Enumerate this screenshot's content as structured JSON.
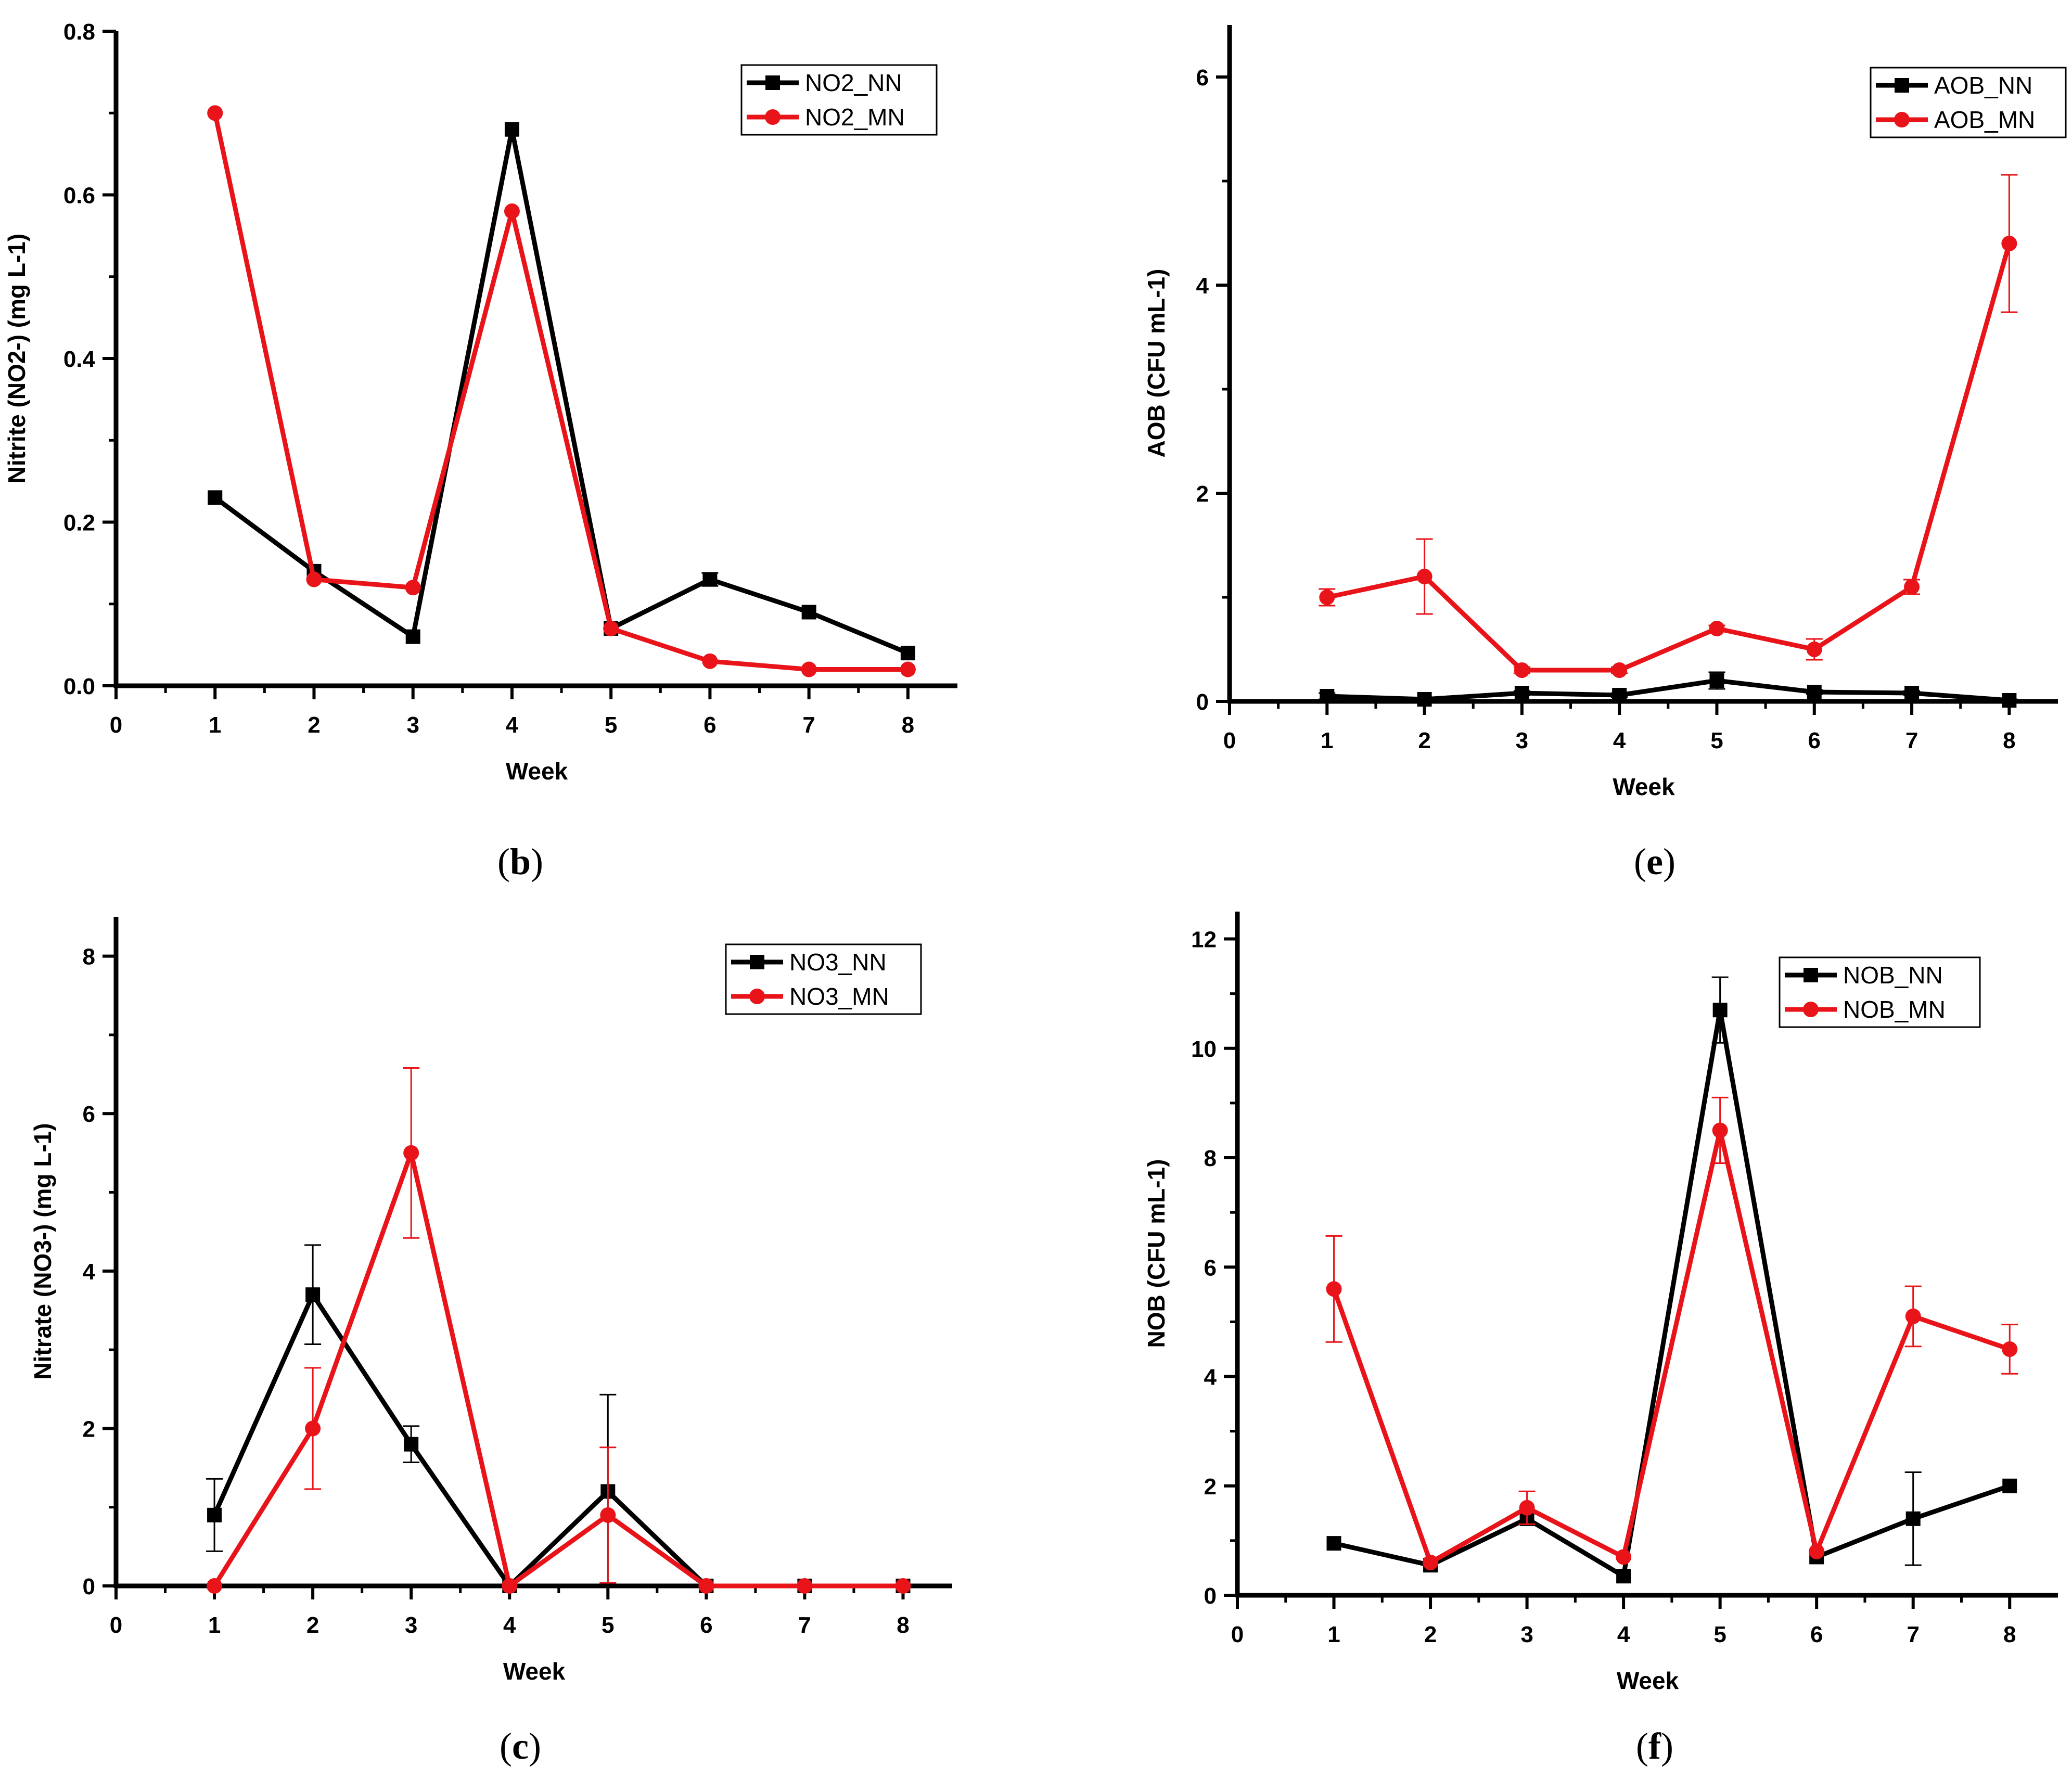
{
  "colors": {
    "nn": "#000000",
    "mn": "#e8141a"
  },
  "chart_data": [
    {
      "id": "b",
      "type": "line",
      "caption": "b",
      "xlabel": "Week",
      "ylabel": "Nitrite (NO2-) (mg L-1)",
      "xlim": [
        0,
        8.5
      ],
      "ylim": [
        0,
        0.8
      ],
      "xticks": [
        0,
        1,
        2,
        3,
        4,
        5,
        6,
        7,
        8
      ],
      "yticks": [
        0,
        0.2,
        0.4,
        0.6,
        0.8
      ],
      "ytick_labels": [
        "0.0",
        "0.2",
        "0.4",
        "0.6",
        "0.8"
      ],
      "series": [
        {
          "name": "NO2_NN",
          "color": "#000000",
          "marker": "square",
          "x": [
            1,
            2,
            3,
            4,
            5,
            6,
            7,
            8
          ],
          "y": [
            0.23,
            0.14,
            0.06,
            0.68,
            0.07,
            0.13,
            0.09,
            0.04
          ],
          "err": [
            0,
            0,
            0,
            0,
            0,
            0.008,
            0,
            0
          ]
        },
        {
          "name": "NO2_MN",
          "color": "#e8141a",
          "marker": "circle",
          "x": [
            1,
            2,
            3,
            4,
            5,
            6,
            7,
            8
          ],
          "y": [
            0.7,
            0.13,
            0.12,
            0.58,
            0.07,
            0.03,
            0.02,
            0.02
          ],
          "err": [
            0,
            0,
            0,
            0,
            0,
            0,
            0,
            0
          ]
        }
      ]
    },
    {
      "id": "e",
      "type": "line",
      "caption": "e",
      "xlabel": "Week",
      "ylabel": "AOB (CFU mL-1)",
      "xlim": [
        0,
        8.5
      ],
      "ylim": [
        0,
        6.5
      ],
      "xticks": [
        0,
        1,
        2,
        3,
        4,
        5,
        6,
        7,
        8
      ],
      "yticks": [
        0,
        2,
        4,
        6
      ],
      "ytick_labels": [
        "0",
        "2",
        "4",
        "6"
      ],
      "series": [
        {
          "name": "AOB_NN",
          "color": "#000000",
          "marker": "square",
          "x": [
            1,
            2,
            3,
            4,
            5,
            6,
            7,
            8
          ],
          "y": [
            0.05,
            0.02,
            0.08,
            0.06,
            0.2,
            0.09,
            0.08,
            0.01
          ],
          "err": [
            0.03,
            0.01,
            0.02,
            0.02,
            0.08,
            0.02,
            0.02,
            0.01
          ]
        },
        {
          "name": "AOB_MN",
          "color": "#e8141a",
          "marker": "circle",
          "x": [
            1,
            2,
            3,
            4,
            5,
            6,
            7,
            8
          ],
          "y": [
            1.0,
            1.2,
            0.3,
            0.3,
            0.7,
            0.5,
            1.1,
            4.4
          ],
          "err": [
            0.08,
            0.36,
            0.03,
            0.03,
            0.03,
            0.1,
            0.07,
            0.66
          ]
        }
      ]
    },
    {
      "id": "c",
      "type": "line",
      "caption": "c",
      "xlabel": "Week",
      "ylabel": "Nitrate (NO3-) (mg L-1)",
      "xlim": [
        0,
        8.5
      ],
      "ylim": [
        0,
        8.5
      ],
      "xticks": [
        0,
        1,
        2,
        3,
        4,
        5,
        6,
        7,
        8
      ],
      "yticks": [
        0,
        2,
        4,
        6,
        8
      ],
      "ytick_labels": [
        "0",
        "2",
        "4",
        "6",
        "8"
      ],
      "series": [
        {
          "name": "NO3_NN",
          "color": "#000000",
          "marker": "square",
          "x": [
            1,
            2,
            3,
            4,
            5,
            6,
            7,
            8
          ],
          "y": [
            0.9,
            3.7,
            1.8,
            0.0,
            1.2,
            0.0,
            0.0,
            0.0
          ],
          "err": [
            0.46,
            0.63,
            0.23,
            0,
            1.23,
            0,
            0,
            0
          ]
        },
        {
          "name": "NO3_MN",
          "color": "#e8141a",
          "marker": "circle",
          "x": [
            1,
            2,
            3,
            4,
            5,
            6,
            7,
            8
          ],
          "y": [
            0.0,
            2.0,
            5.5,
            0.0,
            0.9,
            0.0,
            0.0,
            0.0
          ],
          "err": [
            0,
            0.77,
            1.08,
            0,
            0.86,
            0,
            0,
            0
          ]
        }
      ]
    },
    {
      "id": "f",
      "type": "line",
      "caption": "f",
      "xlabel": "Week",
      "ylabel": "NOB (CFU mL-1)",
      "xlim": [
        0,
        8.5
      ],
      "ylim": [
        0,
        12.5
      ],
      "xticks": [
        0,
        1,
        2,
        3,
        4,
        5,
        6,
        7,
        8
      ],
      "yticks": [
        0,
        2,
        4,
        6,
        8,
        10,
        12
      ],
      "ytick_labels": [
        "0",
        "2",
        "4",
        "6",
        "8",
        "10",
        "12"
      ],
      "series": [
        {
          "name": "NOB_NN",
          "color": "#000000",
          "marker": "square",
          "x": [
            1,
            2,
            3,
            4,
            5,
            6,
            7,
            8
          ],
          "y": [
            0.95,
            0.55,
            1.4,
            0.35,
            10.7,
            0.7,
            1.4,
            2.0
          ],
          "err": [
            0,
            0,
            0.1,
            0,
            0.6,
            0,
            0.85,
            0
          ]
        },
        {
          "name": "NOB_MN",
          "color": "#e8141a",
          "marker": "circle",
          "x": [
            1,
            2,
            3,
            4,
            5,
            6,
            7,
            8
          ],
          "y": [
            5.6,
            0.6,
            1.6,
            0.7,
            8.5,
            0.8,
            5.1,
            4.5
          ],
          "err": [
            0.97,
            0,
            0.3,
            0,
            0.6,
            0,
            0.55,
            0.45
          ]
        }
      ]
    }
  ]
}
